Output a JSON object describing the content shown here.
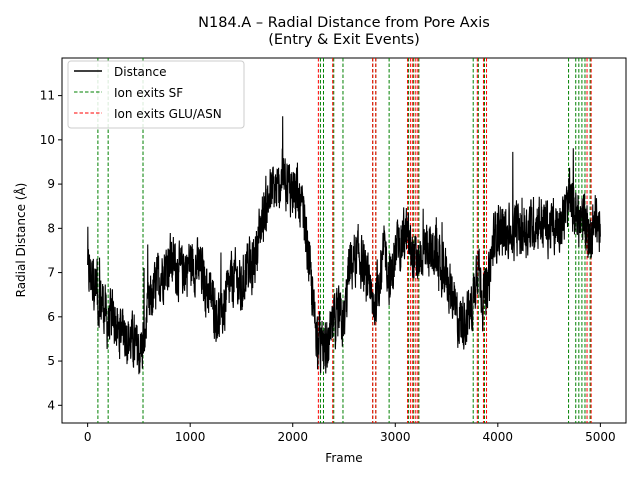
{
  "chart_data": {
    "type": "line",
    "title": "N184.A – Radial Distance from Pore Axis",
    "subtitle": "(Entry & Exit Events)",
    "xlabel": "Frame",
    "ylabel": "Radial Distance (Å)",
    "xlim": [
      -250,
      5250
    ],
    "ylim": [
      3.6,
      11.85
    ],
    "xticks": [
      0,
      1000,
      2000,
      3000,
      4000,
      5000
    ],
    "yticks": [
      4,
      5,
      6,
      7,
      8,
      9,
      10,
      11
    ],
    "grid": false,
    "legend_position": "top-left",
    "colors": {
      "distance": "#000000",
      "sf": "#008000",
      "glu": "#ff0000"
    },
    "legend": [
      {
        "label": "Distance",
        "style": "solid",
        "color": "#000000"
      },
      {
        "label": "Ion exits SF",
        "style": "dashed",
        "color": "#008000"
      },
      {
        "label": "Ion exits GLU/ASN",
        "style": "dashed",
        "color": "#ff0000"
      }
    ],
    "series": [
      {
        "name": "Distance",
        "anchors": [
          [
            0,
            7.0
          ],
          [
            60,
            6.9
          ],
          [
            100,
            6.4
          ],
          [
            150,
            6.3
          ],
          [
            200,
            5.8
          ],
          [
            250,
            6.0
          ],
          [
            300,
            5.6
          ],
          [
            350,
            5.8
          ],
          [
            400,
            5.5
          ],
          [
            450,
            5.4
          ],
          [
            500,
            5.2
          ],
          [
            540,
            5.4
          ],
          [
            580,
            6.0
          ],
          [
            620,
            6.4
          ],
          [
            700,
            6.9
          ],
          [
            800,
            7.3
          ],
          [
            900,
            7.0
          ],
          [
            1000,
            7.2
          ],
          [
            1100,
            7.1
          ],
          [
            1150,
            6.7
          ],
          [
            1200,
            6.5
          ],
          [
            1250,
            6.1
          ],
          [
            1300,
            6.0
          ],
          [
            1350,
            6.4
          ],
          [
            1400,
            6.8
          ],
          [
            1450,
            6.9
          ],
          [
            1500,
            6.5
          ],
          [
            1550,
            7.2
          ],
          [
            1600,
            7.0
          ],
          [
            1650,
            7.6
          ],
          [
            1700,
            8.2
          ],
          [
            1750,
            8.6
          ],
          [
            1800,
            8.9
          ],
          [
            1850,
            8.8
          ],
          [
            1900,
            9.2
          ],
          [
            1950,
            9.0
          ],
          [
            2000,
            8.9
          ],
          [
            2050,
            8.6
          ],
          [
            2100,
            8.3
          ],
          [
            2150,
            7.5
          ],
          [
            2200,
            6.2
          ],
          [
            2250,
            5.5
          ],
          [
            2300,
            5.2
          ],
          [
            2350,
            5.3
          ],
          [
            2400,
            5.9
          ],
          [
            2450,
            6.0
          ],
          [
            2500,
            5.8
          ],
          [
            2550,
            7.1
          ],
          [
            2600,
            7.3
          ],
          [
            2650,
            7.4
          ],
          [
            2700,
            7.0
          ],
          [
            2750,
            6.4
          ],
          [
            2800,
            6.3
          ],
          [
            2850,
            7.0
          ],
          [
            2900,
            7.6
          ],
          [
            2950,
            6.7
          ],
          [
            3000,
            7.4
          ],
          [
            3050,
            7.7
          ],
          [
            3100,
            7.9
          ],
          [
            3150,
            7.5
          ],
          [
            3200,
            7.2
          ],
          [
            3300,
            7.6
          ],
          [
            3400,
            7.4
          ],
          [
            3450,
            7.0
          ],
          [
            3500,
            7.0
          ],
          [
            3550,
            6.5
          ],
          [
            3600,
            6.0
          ],
          [
            3650,
            5.9
          ],
          [
            3700,
            6.0
          ],
          [
            3750,
            6.2
          ],
          [
            3800,
            7.3
          ],
          [
            3850,
            6.5
          ],
          [
            3900,
            6.6
          ],
          [
            3950,
            7.6
          ],
          [
            4000,
            8.0
          ],
          [
            4100,
            7.9
          ],
          [
            4200,
            8.0
          ],
          [
            4300,
            8.0
          ],
          [
            4400,
            8.2
          ],
          [
            4500,
            8.0
          ],
          [
            4600,
            8.1
          ],
          [
            4650,
            8.3
          ],
          [
            4700,
            8.6
          ],
          [
            4750,
            8.4
          ],
          [
            4800,
            8.1
          ],
          [
            4850,
            8.2
          ],
          [
            4900,
            7.8
          ],
          [
            4950,
            8.3
          ],
          [
            5000,
            8.0
          ]
        ],
        "noise_amplitude": 0.55,
        "n_points": 5001
      }
    ],
    "vlines_sf": [
      100,
      200,
      540,
      2270,
      2300,
      2400,
      2490,
      2780,
      2810,
      2940,
      3130,
      3180,
      3230,
      3760,
      3810,
      3870,
      4690,
      4760,
      4790,
      4820,
      4850,
      4900
    ],
    "vlines_glu": [
      2250,
      2390,
      2780,
      2810,
      3120,
      3150,
      3170,
      3200,
      3220,
      3800,
      3860,
      3890,
      4870,
      4910
    ]
  }
}
